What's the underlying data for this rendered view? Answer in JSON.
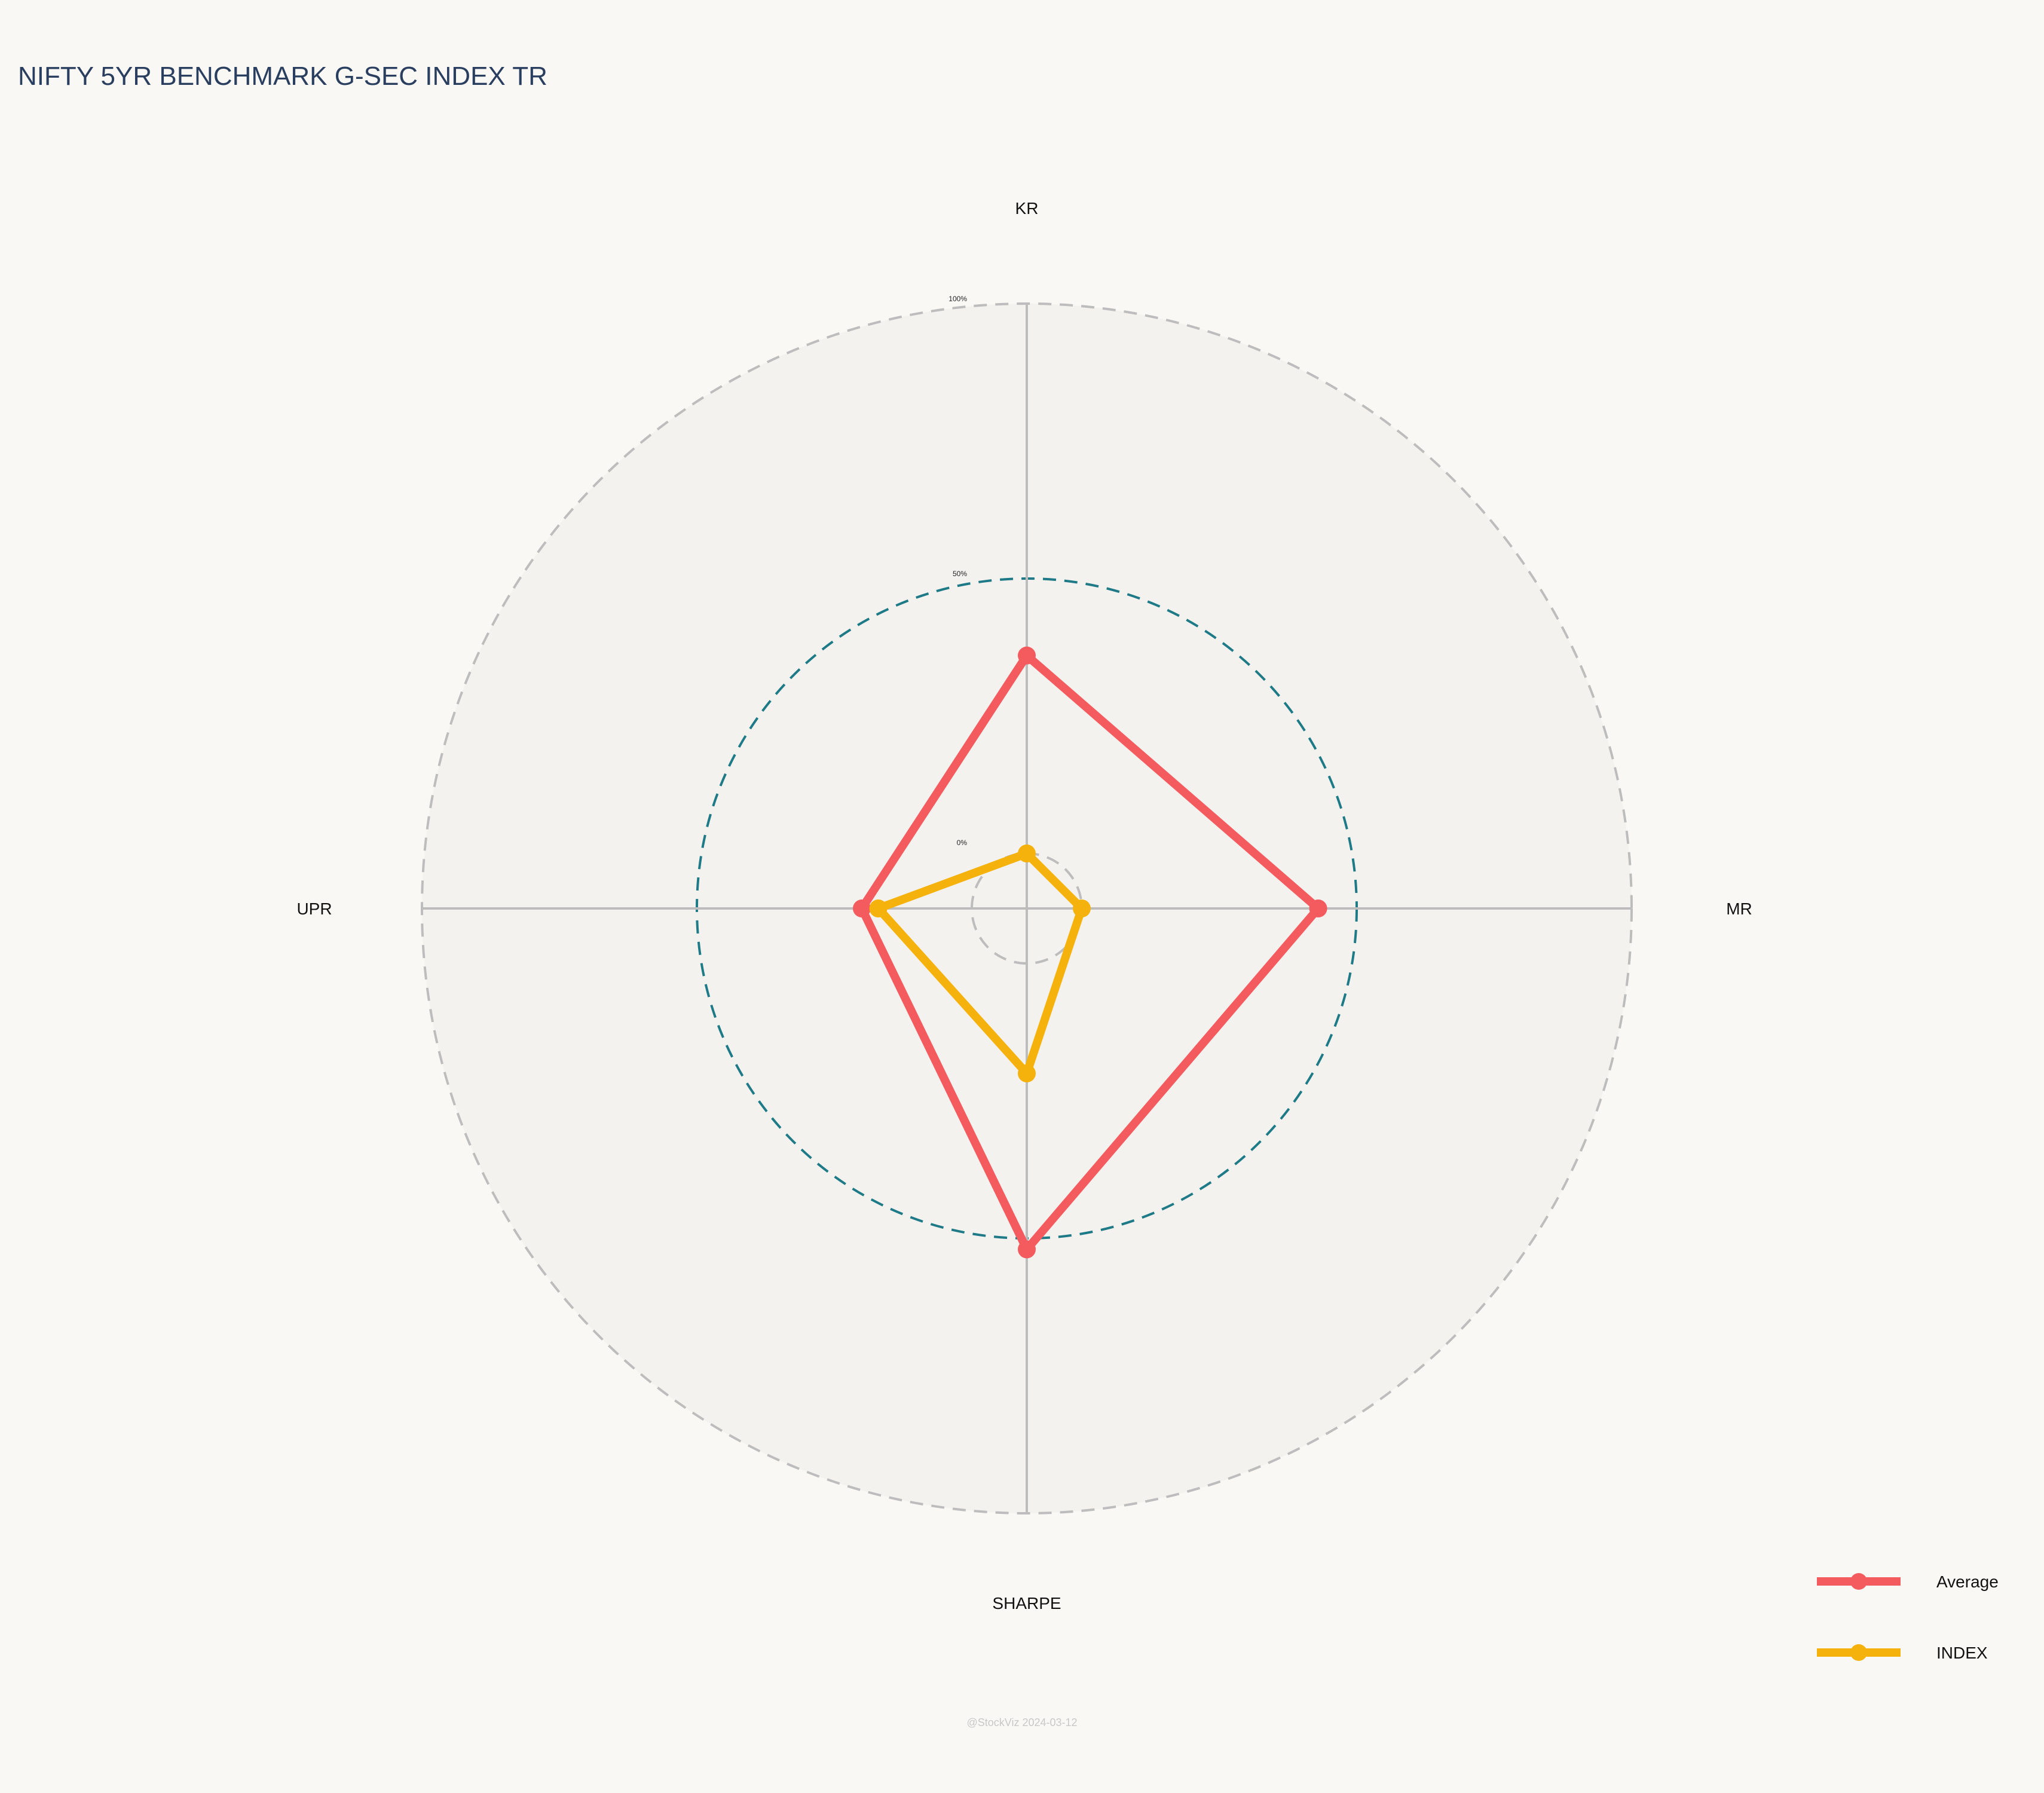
{
  "chart_data": {
    "type": "radar",
    "title": "NIFTY 5YR BENCHMARK G-SEC INDEX TR",
    "axes": [
      "KR",
      "MR",
      "SHARPE",
      "UPR"
    ],
    "radial_ticks": [
      "0%",
      "50%",
      "100%"
    ],
    "radial_range": [
      -10,
      100
    ],
    "series": [
      {
        "name": "Average",
        "color": "#f45b5f",
        "values": [
          36,
          43,
          52,
          20
        ]
      },
      {
        "name": "INDEX",
        "color": "#f5b20c",
        "values": [
          0,
          0,
          20,
          17
        ]
      }
    ],
    "legend_position": "bottom-right",
    "watermark": "@StockViz 2024-03-12"
  },
  "colors": {
    "background": "#f9f8f4",
    "plot_background": "#f3f2ee",
    "grid": "#bdbdbd",
    "mid_ring": "#1d7a86"
  }
}
